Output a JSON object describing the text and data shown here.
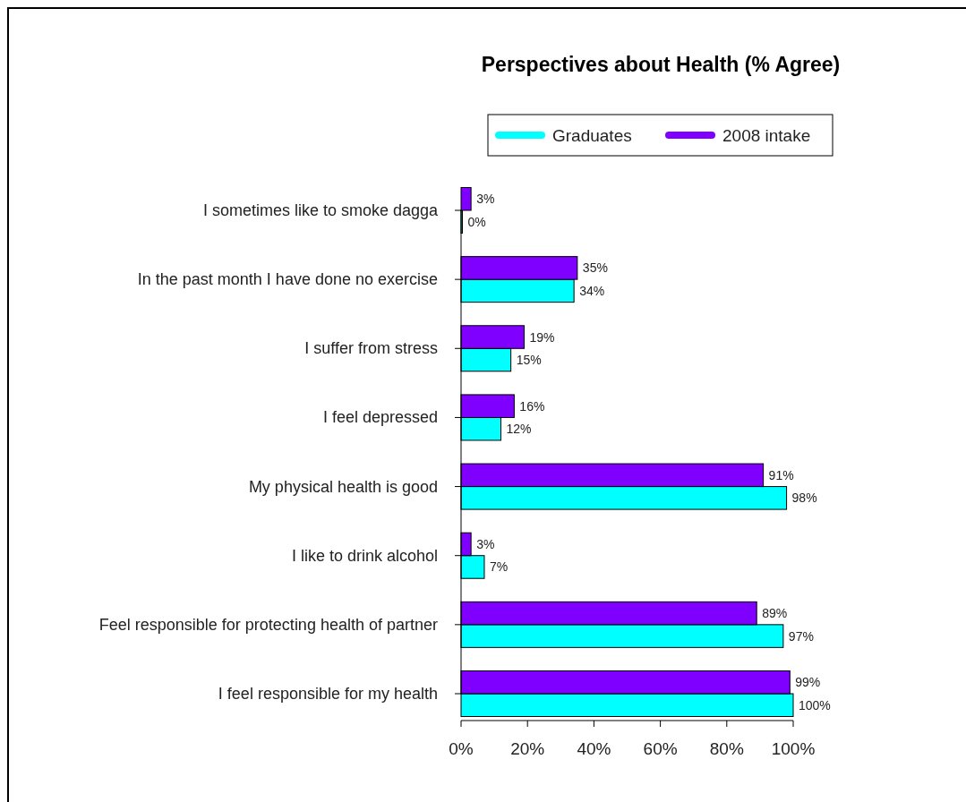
{
  "chart_data": {
    "type": "bar",
    "orientation": "horizontal",
    "title": "Perspectives about Health (% Agree)",
    "categories": [
      "I sometimes like to smoke dagga",
      "In the past month I have done no exercise",
      "I suffer from stress",
      "I feel depressed",
      "My physical health is good",
      "I like to drink alcohol",
      "Feel responsible for protecting health of partner",
      "I feel responsible for my health"
    ],
    "series": [
      {
        "name": "Graduates",
        "color": "#00ffff",
        "values": [
          0,
          34,
          15,
          12,
          98,
          7,
          97,
          100
        ],
        "value_labels": [
          "0%",
          "34%",
          "15%",
          "12%",
          "98%",
          "7%",
          "97%",
          "100%"
        ]
      },
      {
        "name": "2008 intake",
        "color": "#8000ff",
        "values": [
          3,
          35,
          19,
          16,
          91,
          3,
          89,
          99
        ],
        "value_labels": [
          "3%",
          "35%",
          "19%",
          "16%",
          "91%",
          "3%",
          "89%",
          "99%"
        ]
      }
    ],
    "xlim": [
      0,
      100
    ],
    "xticks": [
      {
        "value": 0,
        "label": "0%"
      },
      {
        "value": 20,
        "label": "20%"
      },
      {
        "value": 40,
        "label": "40%"
      },
      {
        "value": 60,
        "label": "60%"
      },
      {
        "value": 80,
        "label": "80%"
      },
      {
        "value": 100,
        "label": "100%"
      }
    ],
    "grid": false,
    "legend": "top"
  }
}
